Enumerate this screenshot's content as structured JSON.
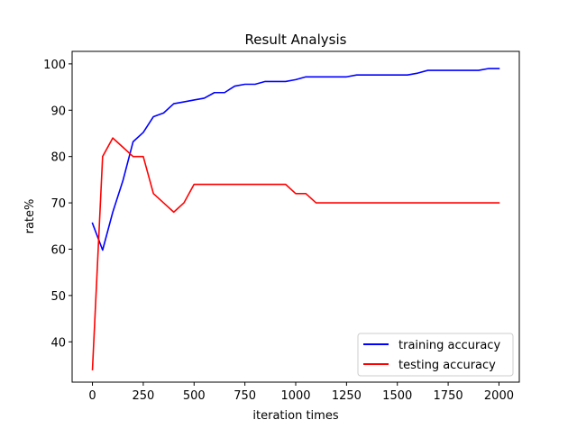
{
  "chart_data": {
    "type": "line",
    "title": "Result Analysis",
    "xlabel": "iteration times",
    "ylabel": "rate%",
    "xlim": [
      -100,
      2100
    ],
    "ylim": [
      31.3,
      102.7
    ],
    "xticks": [
      0,
      250,
      500,
      750,
      1000,
      1250,
      1500,
      1750,
      2000
    ],
    "yticks": [
      40,
      50,
      60,
      70,
      80,
      90,
      100
    ],
    "grid": false,
    "legend_position": "lower-right",
    "series": [
      {
        "name": "training accuracy",
        "color": "#0000ff",
        "x": [
          0,
          50,
          100,
          150,
          200,
          250,
          300,
          350,
          400,
          450,
          500,
          550,
          600,
          650,
          700,
          750,
          800,
          850,
          900,
          950,
          1000,
          1050,
          1100,
          1150,
          1200,
          1250,
          1300,
          1350,
          1400,
          1450,
          1500,
          1550,
          1600,
          1650,
          1700,
          1750,
          1800,
          1850,
          1900,
          1950,
          2000
        ],
        "values": [
          65.6,
          59.8,
          68,
          74.8,
          83.2,
          85.2,
          88.6,
          89.4,
          91.4,
          91.8,
          92.2,
          92.6,
          93.8,
          93.8,
          95.2,
          95.6,
          95.6,
          96.2,
          96.2,
          96.2,
          96.6,
          97.2,
          97.2,
          97.2,
          97.2,
          97.2,
          97.6,
          97.6,
          97.6,
          97.6,
          97.6,
          97.6,
          98,
          98.6,
          98.6,
          98.6,
          98.6,
          98.6,
          98.6,
          99,
          99
        ]
      },
      {
        "name": "testing accuracy",
        "color": "#ff0000",
        "x": [
          0,
          50,
          100,
          150,
          200,
          250,
          300,
          350,
          400,
          450,
          500,
          550,
          600,
          650,
          700,
          750,
          800,
          850,
          900,
          950,
          1000,
          1050,
          1100,
          1150,
          1200,
          1250,
          1300,
          1350,
          1400,
          1450,
          1500,
          1550,
          1600,
          1650,
          1700,
          1750,
          1800,
          1850,
          1900,
          1950,
          2000
        ],
        "values": [
          34,
          80,
          84,
          82,
          80,
          80,
          72,
          70,
          68,
          70,
          74,
          74,
          74,
          74,
          74,
          74,
          74,
          74,
          74,
          74,
          72,
          72,
          70,
          70,
          70,
          70,
          70,
          70,
          70,
          70,
          70,
          70,
          70,
          70,
          70,
          70,
          70,
          70,
          70,
          70,
          70
        ]
      }
    ]
  }
}
